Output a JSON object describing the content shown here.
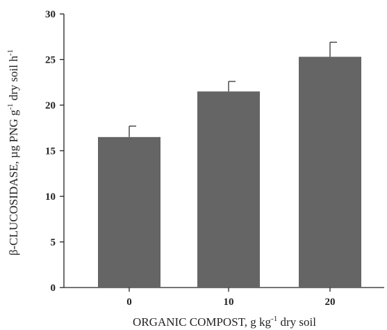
{
  "chart_data": {
    "type": "bar",
    "categories": [
      "0",
      "10",
      "20"
    ],
    "values": [
      16.5,
      21.5,
      25.3
    ],
    "error": [
      1.2,
      1.1,
      1.6
    ],
    "ylim": [
      0,
      30
    ],
    "yticks": [
      0,
      5,
      10,
      15,
      20,
      25,
      30
    ],
    "xlabel": {
      "prefix": "ORGANIC COMPOST, g kg",
      "sup": "-1",
      "suffix": " dry soil"
    },
    "ylabel": {
      "prefix": "β-CLUCOSIDASE, µg PNG g",
      "sup": "-1",
      "suffix": " dry soil h",
      "sup2": "-1"
    },
    "bar_color": "#656565",
    "grid": false,
    "legend": "none"
  }
}
